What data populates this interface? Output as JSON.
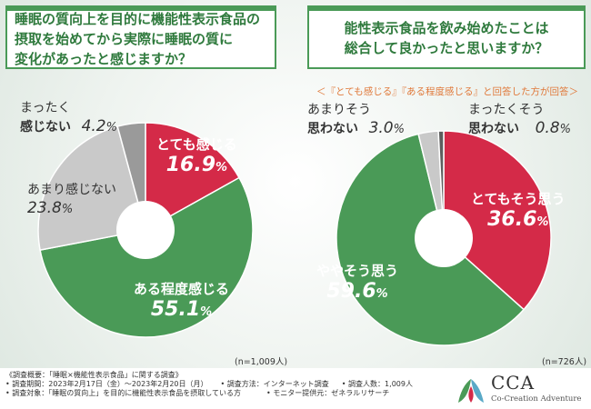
{
  "q1": {
    "lines": [
      "睡眠の質向上を目的に機能性表示食品の",
      "摂取を始めてから実際に睡眠の質に",
      "変化があったと感じますか？"
    ]
  },
  "q2": {
    "lines": [
      "能性表示食品を飲み始めたことは",
      "総合して良かったと思いますか？"
    ]
  },
  "subnote": "＜『とても感じる』『ある程度感じる』と回答した方が回答＞",
  "colors": {
    "red": "#d42a48",
    "green": "#4a9a57",
    "gray1": "#c9c9c9",
    "gray2": "#9a9a9a",
    "gray3": "#5e5e5e"
  },
  "chart_data": [
    {
      "type": "pie",
      "title": "睡眠の質向上を目的に機能性表示食品の摂取を始めてから実際に睡眠の質に変化があったと感じますか？",
      "unit": "%",
      "n": "(n=1,009人)",
      "slices": [
        {
          "label": "とても感じる",
          "value": 16.9,
          "display": "16.9",
          "pct": "%",
          "color": "#d42a48"
        },
        {
          "label": "ある程度感じる",
          "value": 55.1,
          "display": "55.1",
          "pct": "%",
          "color": "#4a9a57"
        },
        {
          "label": "あまり感じない",
          "value": 23.8,
          "display": "23.8",
          "pct": "%",
          "color": "#c9c9c9"
        },
        {
          "label": "まったく感じない",
          "label_lines": [
            "まったく",
            "感じない"
          ],
          "value": 4.2,
          "display": "4.2",
          "pct": "%",
          "color": "#9a9a9a"
        }
      ]
    },
    {
      "type": "pie",
      "title": "能性表示食品を飲み始めたことは総合して良かったと思いますか？",
      "unit": "%",
      "n": "(n=726人)",
      "slices": [
        {
          "label": "とてもそう思う",
          "value": 36.6,
          "display": "36.6",
          "pct": "%",
          "color": "#d42a48"
        },
        {
          "label": "ややそう思う",
          "value": 59.6,
          "display": "59.6",
          "pct": "%",
          "color": "#4a9a57"
        },
        {
          "label": "あまりそう思わない",
          "label_lines": [
            "あまりそう",
            "思わない"
          ],
          "value": 3.0,
          "display": "3.0",
          "pct": "%",
          "color": "#c9c9c9"
        },
        {
          "label": "まったくそう思わない",
          "label_lines": [
            "まったくそう",
            "思わない"
          ],
          "value": 0.8,
          "display": "0.8",
          "pct": "%",
          "color": "#5e5e5e"
        }
      ]
    }
  ],
  "footer": {
    "notes": [
      [
        "《調査概要：「睡眠×機能性表示食品」に関する調査》"
      ],
      [
        "• 調査期間：2023年2月17日（金）～2023年2月20日（月）",
        "• 調査方法：インターネット調査",
        "• 調査人数：1,009人"
      ],
      [
        "• 調査対象：「睡眠の質向上」を目的に機能性表示食品を摂取している方",
        "• モニター提供元：ゼネラルリサーチ"
      ]
    ],
    "logo": {
      "name": "CCA",
      "sub": "Co-Creation Adventure"
    }
  }
}
